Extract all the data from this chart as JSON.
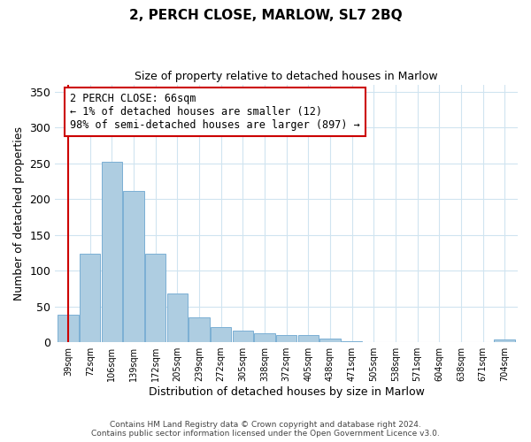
{
  "title": "2, PERCH CLOSE, MARLOW, SL7 2BQ",
  "subtitle": "Size of property relative to detached houses in Marlow",
  "xlabel": "Distribution of detached houses by size in Marlow",
  "ylabel": "Number of detached properties",
  "bin_labels": [
    "39sqm",
    "72sqm",
    "106sqm",
    "139sqm",
    "172sqm",
    "205sqm",
    "239sqm",
    "272sqm",
    "305sqm",
    "338sqm",
    "372sqm",
    "405sqm",
    "438sqm",
    "471sqm",
    "505sqm",
    "538sqm",
    "571sqm",
    "604sqm",
    "638sqm",
    "671sqm",
    "704sqm"
  ],
  "bar_values": [
    38,
    124,
    252,
    211,
    124,
    68,
    35,
    21,
    16,
    13,
    10,
    10,
    5,
    1,
    0,
    0,
    0,
    0,
    0,
    0,
    4
  ],
  "bar_color": "#aecde1",
  "bar_edge_color": "#7bafd4",
  "highlight_line_color": "#cc0000",
  "annotation_text": "2 PERCH CLOSE: 66sqm\n← 1% of detached houses are smaller (12)\n98% of semi-detached houses are larger (897) →",
  "annotation_box_color": "#ffffff",
  "annotation_border_color": "#cc0000",
  "ylim": [
    0,
    360
  ],
  "yticks": [
    0,
    50,
    100,
    150,
    200,
    250,
    300,
    350
  ],
  "footer_line1": "Contains HM Land Registry data © Crown copyright and database right 2024.",
  "footer_line2": "Contains public sector information licensed under the Open Government Licence v3.0.",
  "background_color": "#ffffff",
  "grid_color": "#d0e4f0"
}
